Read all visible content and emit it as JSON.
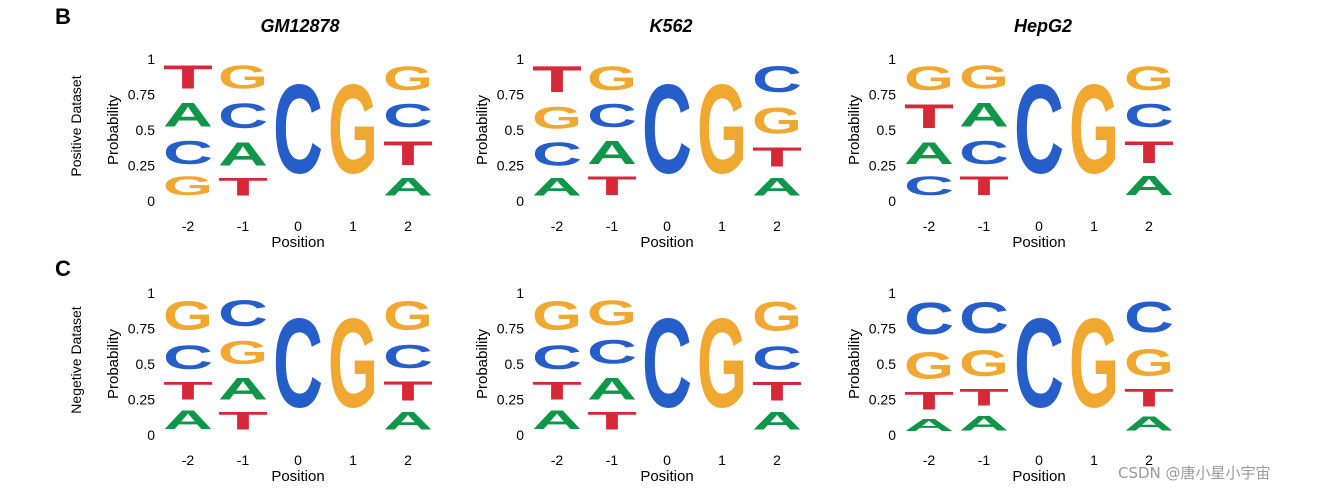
{
  "figure": {
    "panel_labels": [
      "B",
      "C"
    ],
    "row_labels": [
      "Positive Dataset",
      "Negetive Dataset"
    ],
    "column_titles": [
      "GM12878",
      "K562",
      "HepG2"
    ],
    "ylabel": "Probability",
    "xlabel": "Position",
    "watermark": "CSDN @唐小星小宇宙"
  },
  "colors": {
    "A": "#109648",
    "C": "#255ec9",
    "G": "#f0a830",
    "T": "#d62839"
  },
  "chart_data": [
    {
      "type": "sequence-logo",
      "row": "Positive Dataset",
      "title": "GM12878",
      "x": [
        -2,
        -1,
        0,
        1,
        2
      ],
      "ylim": [
        0,
        1
      ],
      "yticks": [
        "0",
        "0.25",
        "0.5",
        "0.75",
        "1"
      ],
      "xlabel": "Position",
      "ylabel": "Probability",
      "columns": [
        [
          [
            "G",
            0.21
          ],
          [
            "C",
            0.26
          ],
          [
            "A",
            0.27
          ],
          [
            "T",
            0.26
          ]
        ],
        [
          [
            "T",
            0.2
          ],
          [
            "A",
            0.26
          ],
          [
            "C",
            0.28
          ],
          [
            "G",
            0.26
          ]
        ],
        [
          [
            "C",
            1.0
          ]
        ],
        [
          [
            "G",
            1.0
          ]
        ],
        [
          [
            "A",
            0.2
          ],
          [
            "T",
            0.27
          ],
          [
            "C",
            0.26
          ],
          [
            "G",
            0.27
          ]
        ]
      ]
    },
    {
      "type": "sequence-logo",
      "row": "Positive Dataset",
      "title": "K562",
      "x": [
        -2,
        -1,
        0,
        1,
        2
      ],
      "ylim": [
        0,
        1
      ],
      "yticks": [
        "0",
        "0.25",
        "0.5",
        "0.75",
        "1"
      ],
      "xlabel": "Position",
      "ylabel": "Probability",
      "columns": [
        [
          [
            "A",
            0.2
          ],
          [
            "C",
            0.26
          ],
          [
            "G",
            0.25
          ],
          [
            "T",
            0.29
          ]
        ],
        [
          [
            "T",
            0.21
          ],
          [
            "A",
            0.26
          ],
          [
            "C",
            0.26
          ],
          [
            "G",
            0.27
          ]
        ],
        [
          [
            "C",
            1.0
          ]
        ],
        [
          [
            "G",
            1.0
          ]
        ],
        [
          [
            "A",
            0.2
          ],
          [
            "T",
            0.22
          ],
          [
            "G",
            0.29
          ],
          [
            "C",
            0.29
          ]
        ]
      ]
    },
    {
      "type": "sequence-logo",
      "row": "Positive Dataset",
      "title": "HepG2",
      "x": [
        -2,
        -1,
        0,
        1,
        2
      ],
      "ylim": [
        0,
        1
      ],
      "yticks": [
        "0",
        "0.25",
        "0.5",
        "0.75",
        "1"
      ],
      "xlabel": "Position",
      "ylabel": "Probability",
      "columns": [
        [
          [
            "C",
            0.21
          ],
          [
            "A",
            0.25
          ],
          [
            "T",
            0.27
          ],
          [
            "G",
            0.27
          ]
        ],
        [
          [
            "T",
            0.21
          ],
          [
            "C",
            0.26
          ],
          [
            "A",
            0.27
          ],
          [
            "G",
            0.26
          ]
        ],
        [
          [
            "C",
            1.0
          ]
        ],
        [
          [
            "G",
            1.0
          ]
        ],
        [
          [
            "A",
            0.22
          ],
          [
            "T",
            0.25
          ],
          [
            "C",
            0.26
          ],
          [
            "G",
            0.27
          ]
        ]
      ]
    },
    {
      "type": "sequence-logo",
      "row": "Negetive Dataset",
      "title": "",
      "x": [
        -2,
        -1,
        0,
        1,
        2
      ],
      "ylim": [
        0,
        1
      ],
      "yticks": [
        "0",
        "0.25",
        "0.5",
        "0.75",
        "1"
      ],
      "xlabel": "Position",
      "ylabel": "Probability",
      "columns": [
        [
          [
            "A",
            0.21
          ],
          [
            "T",
            0.2
          ],
          [
            "C",
            0.27
          ],
          [
            "G",
            0.32
          ]
        ],
        [
          [
            "T",
            0.2
          ],
          [
            "A",
            0.25
          ],
          [
            "G",
            0.26
          ],
          [
            "C",
            0.29
          ]
        ],
        [
          [
            "C",
            1.0
          ]
        ],
        [
          [
            "G",
            1.0
          ]
        ],
        [
          [
            "A",
            0.2
          ],
          [
            "T",
            0.22
          ],
          [
            "C",
            0.26
          ],
          [
            "G",
            0.32
          ]
        ]
      ]
    },
    {
      "type": "sequence-logo",
      "row": "Negetive Dataset",
      "title": "",
      "x": [
        -2,
        -1,
        0,
        1,
        2
      ],
      "ylim": [
        0,
        1
      ],
      "yticks": [
        "0",
        "0.25",
        "0.5",
        "0.75",
        "1"
      ],
      "xlabel": "Position",
      "ylabel": "Probability",
      "columns": [
        [
          [
            "A",
            0.21
          ],
          [
            "T",
            0.2
          ],
          [
            "C",
            0.27
          ],
          [
            "G",
            0.32
          ]
        ],
        [
          [
            "T",
            0.2
          ],
          [
            "A",
            0.25
          ],
          [
            "C",
            0.27
          ],
          [
            "G",
            0.28
          ]
        ],
        [
          [
            "C",
            1.0
          ]
        ],
        [
          [
            "G",
            1.0
          ]
        ],
        [
          [
            "A",
            0.2
          ],
          [
            "T",
            0.21
          ],
          [
            "C",
            0.26
          ],
          [
            "G",
            0.33
          ]
        ]
      ]
    },
    {
      "type": "sequence-logo",
      "row": "Negetive Dataset",
      "title": "",
      "x": [
        -2,
        -1,
        0,
        1,
        2
      ],
      "ylim": [
        0,
        1
      ],
      "yticks": [
        "0",
        "0.25",
        "0.5",
        "0.75",
        "1"
      ],
      "xlabel": "Position",
      "ylabel": "Probability",
      "columns": [
        [
          [
            "A",
            0.14
          ],
          [
            "T",
            0.2
          ],
          [
            "G",
            0.3
          ],
          [
            "C",
            0.36
          ]
        ],
        [
          [
            "A",
            0.17
          ],
          [
            "T",
            0.19
          ],
          [
            "G",
            0.29
          ],
          [
            "C",
            0.35
          ]
        ],
        [
          [
            "C",
            1.0
          ]
        ],
        [
          [
            "G",
            1.0
          ]
        ],
        [
          [
            "A",
            0.16
          ],
          [
            "T",
            0.2
          ],
          [
            "G",
            0.3
          ],
          [
            "C",
            0.34
          ]
        ]
      ]
    }
  ]
}
